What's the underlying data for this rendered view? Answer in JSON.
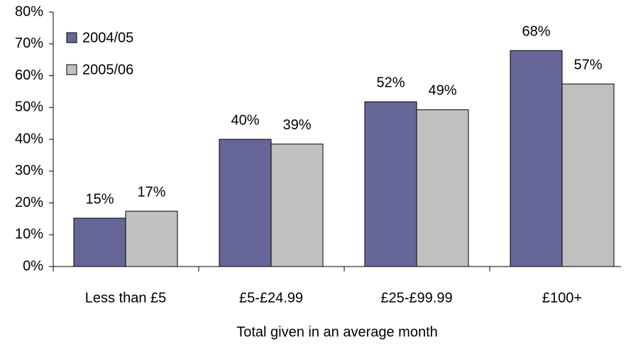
{
  "chart_data": {
    "type": "bar",
    "x_label": "Total given in an average month",
    "categories": [
      "Less than £5",
      "£5-£24.99",
      "£25-£99.99",
      "£100+"
    ],
    "series": [
      {
        "name": "2004/05",
        "color": "#666699",
        "values": [
          15.2,
          40,
          51.8,
          67.9
        ],
        "value_labels": [
          "15%",
          "40%",
          "52%",
          "68%"
        ]
      },
      {
        "name": "2005/06",
        "color": "#c0c0c0",
        "values": [
          17.4,
          38.5,
          49.3,
          57.4
        ],
        "value_labels": [
          "17%",
          "39%",
          "49%",
          "57%"
        ]
      }
    ],
    "ylim": [
      0,
      80
    ],
    "yticks": [
      {
        "value": 0,
        "label": "0%"
      },
      {
        "value": 10,
        "label": "10%"
      },
      {
        "value": 20,
        "label": "20%"
      },
      {
        "value": 30,
        "label": "30%"
      },
      {
        "value": 40,
        "label": "40%"
      },
      {
        "value": 50,
        "label": "50%"
      },
      {
        "value": 60,
        "label": "60%"
      },
      {
        "value": 70,
        "label": "70%"
      },
      {
        "value": 80,
        "label": "80%"
      }
    ],
    "grid": false,
    "legend": "upper left"
  }
}
